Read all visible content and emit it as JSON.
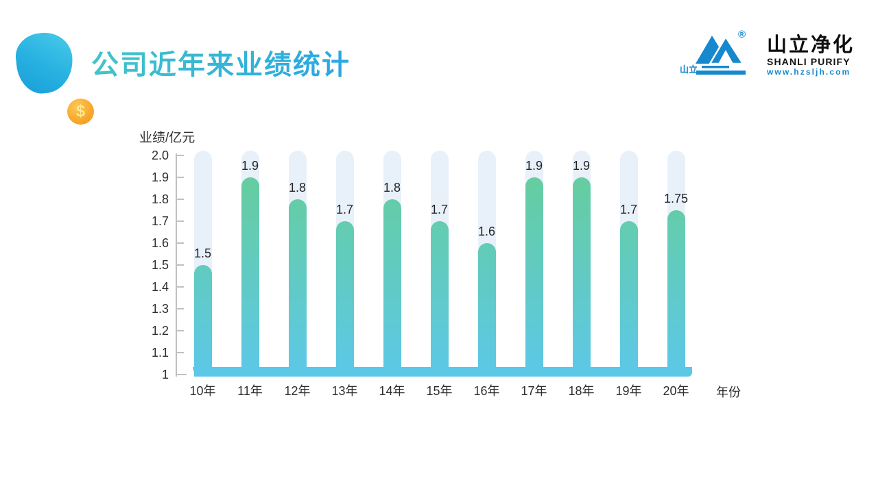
{
  "slide": {
    "title": "公司近年来业绩统计"
  },
  "decor": {
    "coin_symbol": "$"
  },
  "logo": {
    "mark_text": "山立",
    "reg": "®",
    "name_cn": "山立净化",
    "name_en": "SHANLI PURIFY",
    "website": "www.hzsljh.com",
    "brand_color": "#1688cd"
  },
  "chart_data": {
    "type": "bar",
    "title": "公司近年来业绩统计",
    "ylabel": "业绩/亿元",
    "xlabel": "年份",
    "categories": [
      "10年",
      "11年",
      "12年",
      "13年",
      "14年",
      "15年",
      "16年",
      "17年",
      "18年",
      "19年",
      "20年"
    ],
    "values": [
      1.5,
      1.9,
      1.8,
      1.7,
      1.8,
      1.7,
      1.6,
      1.9,
      1.9,
      1.7,
      1.75
    ],
    "value_labels": [
      "1.5",
      "1.9",
      "1.8",
      "1.7",
      "1.8",
      "1.7",
      "1.6",
      "1.9",
      "1.9",
      "1.7",
      "1.75"
    ],
    "ylim": [
      1,
      2.0
    ],
    "ytick_step": 0.1,
    "yticks": [
      "2.0",
      "1.9",
      "1.8",
      "1.7",
      "1.6",
      "1.5",
      "1.4",
      "1.3",
      "1.2",
      "1.1",
      "1"
    ],
    "grid": false,
    "legend": false,
    "colors": {
      "bar_top": "#67ce95",
      "bar_bottom": "#5cc8e8",
      "track": "#e8f1f9",
      "base": "#5cc8e8",
      "axis": "#bdc1c3",
      "text": "#2e2e2e"
    }
  }
}
